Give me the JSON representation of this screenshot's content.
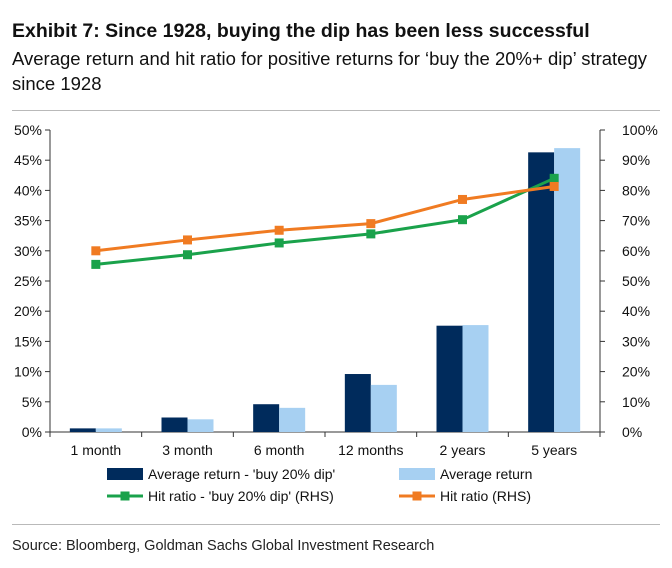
{
  "header": {
    "title": "Exhibit 7: Since 1928, buying the dip has been less successful",
    "subtitle": "Average return and hit ratio for positive returns for ‘buy the 20%+ dip’ strategy since 1928"
  },
  "footer": {
    "source": "Source: Bloomberg, Goldman Sachs Global Investment Research"
  },
  "chart_data": {
    "type": "bar",
    "categories": [
      "1 month",
      "3 month",
      "6 month",
      "12 months",
      "2 years",
      "5 years"
    ],
    "series": [
      {
        "name": "Average return - 'buy 20% dip'",
        "type": "bar",
        "axis": "left",
        "color": "#002b5c",
        "values": [
          0.6,
          2.4,
          4.6,
          9.6,
          17.6,
          46.3
        ]
      },
      {
        "name": "Average return",
        "type": "bar",
        "axis": "left",
        "color": "#a7d0f2",
        "values": [
          0.6,
          2.1,
          4.0,
          7.8,
          17.7,
          47.0
        ]
      },
      {
        "name": "Hit ratio - 'buy 20% dip' (RHS)",
        "type": "line",
        "axis": "right",
        "color": "#1aa24b",
        "values": [
          55.5,
          58.7,
          62.6,
          65.6,
          70.3,
          84.0
        ]
      },
      {
        "name": "Hit ratio (RHS)",
        "type": "line",
        "axis": "right",
        "color": "#f07b22",
        "values": [
          60.0,
          63.6,
          66.8,
          69.0,
          77.0,
          81.3
        ]
      }
    ],
    "y_left": {
      "min": 0,
      "max": 50,
      "step": 5,
      "suffix": "%"
    },
    "y_right": {
      "min": 0,
      "max": 100,
      "step": 10,
      "suffix": "%"
    },
    "legend_position": "bottom",
    "grid": false
  }
}
